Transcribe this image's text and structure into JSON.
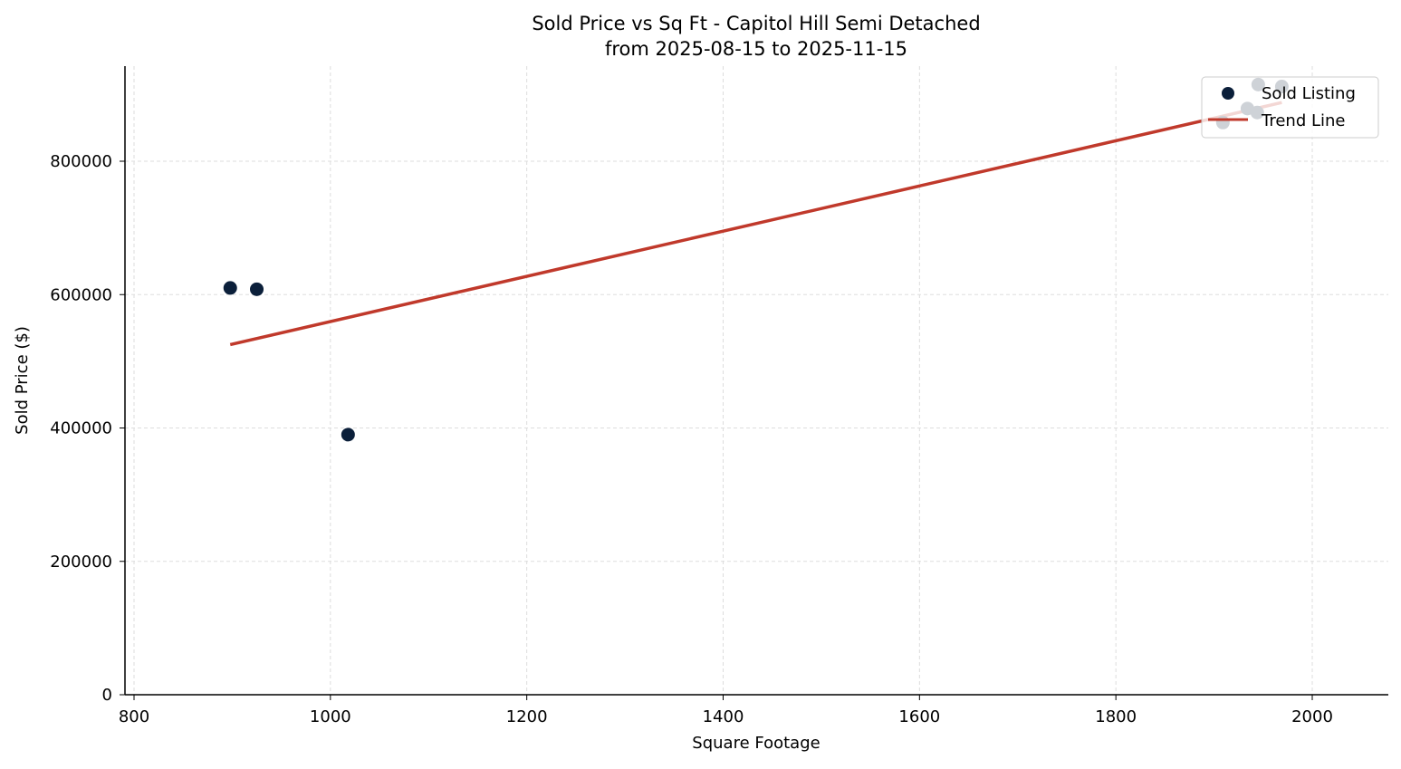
{
  "chart_data": {
    "type": "scatter",
    "title": "Sold Price vs Sq Ft - Capitol Hill Semi Detached",
    "subtitle": "from 2025-08-15 to 2025-11-15",
    "xlabel": "Square Footage",
    "ylabel": "Sold Price ($)",
    "xlim": [
      790,
      2076
    ],
    "ylim": [
      0,
      940000
    ],
    "xticks": [
      800,
      1000,
      1200,
      1400,
      1600,
      1800,
      2000
    ],
    "yticks": [
      0,
      200000,
      400000,
      600000,
      800000
    ],
    "grid": true,
    "legend_position": "top-right",
    "series": [
      {
        "name": "Sold Listing",
        "type": "scatter",
        "color": "#0b1f3a",
        "x": [
          898,
          925,
          1018,
          1909,
          1934,
          1944,
          1945,
          1969
        ],
        "y": [
          610000,
          608000,
          390000,
          858000,
          879000,
          873000,
          915000,
          912000
        ]
      },
      {
        "name": "Trend Line",
        "type": "line",
        "color": "#c0392b",
        "x": [
          898,
          1969
        ],
        "y": [
          525000,
          888000
        ]
      }
    ]
  }
}
